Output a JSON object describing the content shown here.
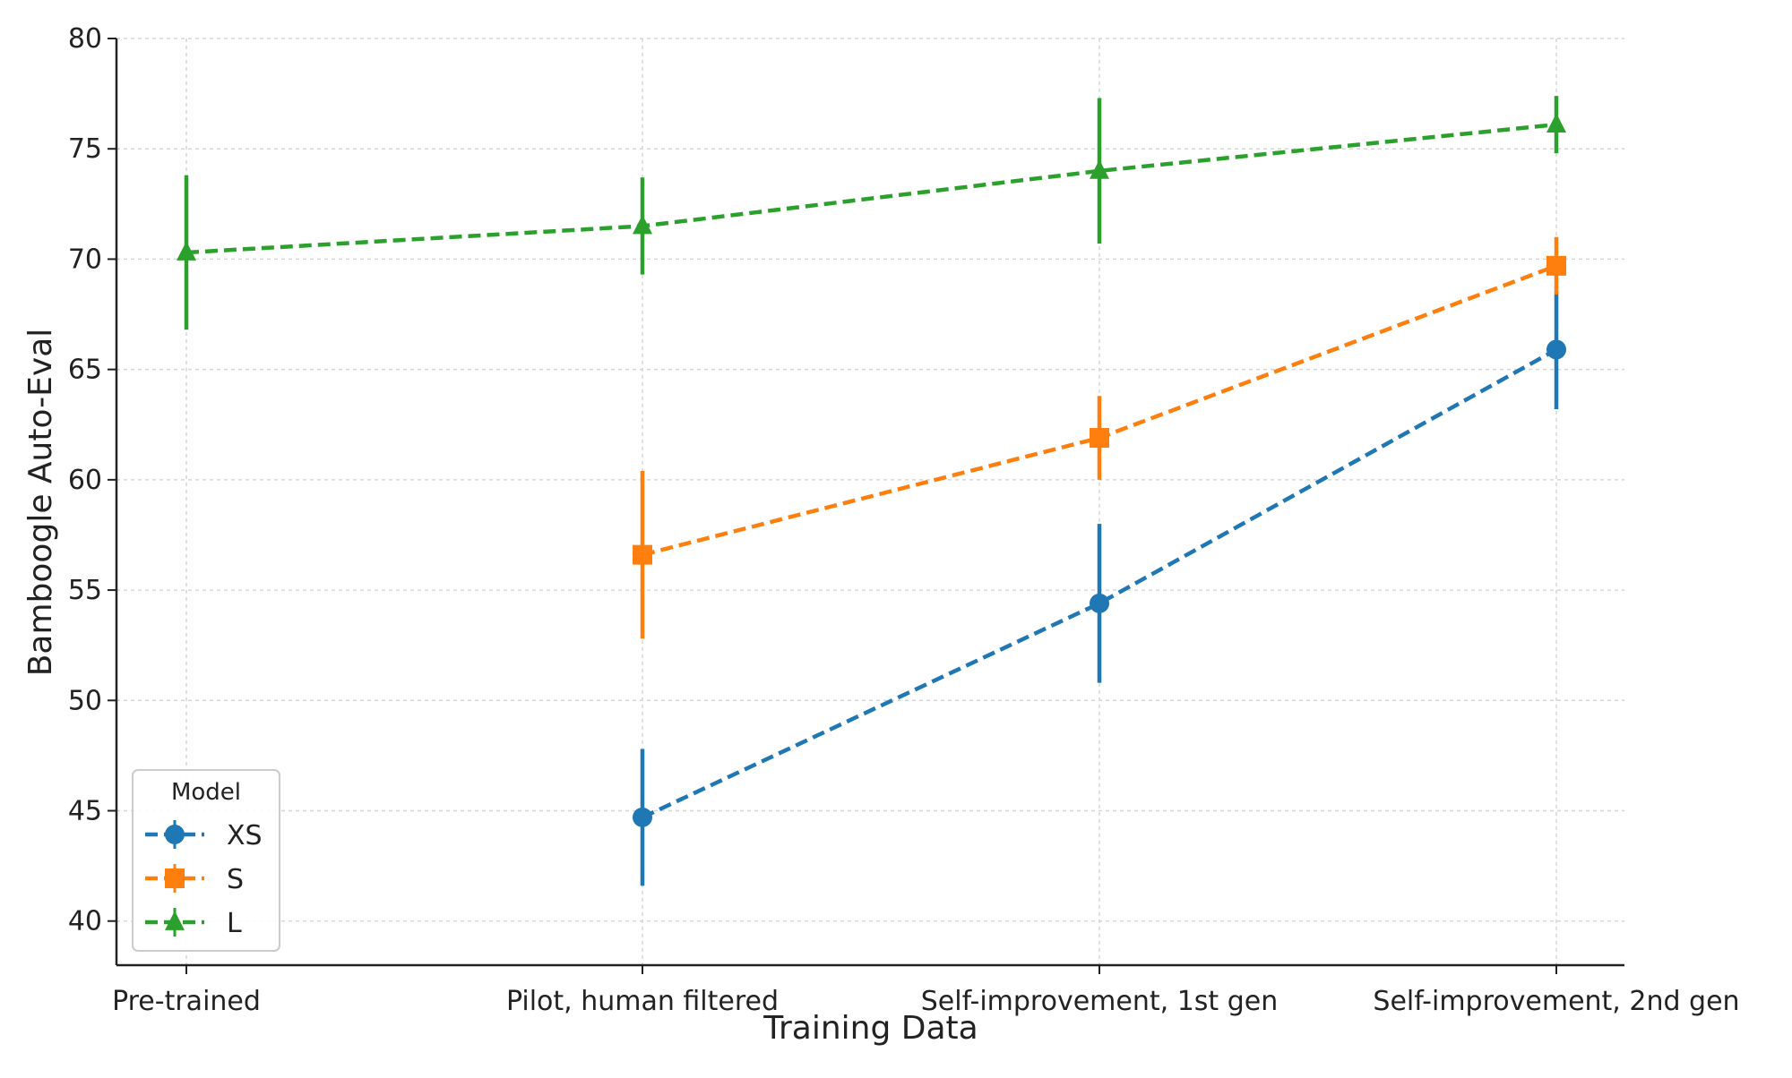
{
  "chart_data": {
    "type": "line",
    "title": "",
    "xlabel": "Training Data",
    "ylabel": "Bamboogle Auto-Eval",
    "categories": [
      "Pre-trained",
      "Pilot, human filtered",
      "Self-improvement, 1st gen",
      "Self-improvement, 2nd gen"
    ],
    "ylim": [
      38,
      80
    ],
    "yticks": [
      40,
      45,
      50,
      55,
      60,
      65,
      70,
      75,
      80
    ],
    "grid": true,
    "legend": {
      "title": "Model",
      "placement": "lower-left"
    },
    "series": [
      {
        "name": "XS",
        "color": "#1f77b4",
        "marker": "circle",
        "linestyle": "dashed",
        "values": [
          null,
          44.7,
          54.4,
          65.9
        ],
        "err_low": [
          null,
          41.6,
          50.8,
          63.2
        ],
        "err_high": [
          null,
          47.8,
          58.0,
          68.5
        ]
      },
      {
        "name": "S",
        "color": "#ff7f0e",
        "marker": "square",
        "linestyle": "dashed",
        "values": [
          null,
          56.6,
          61.9,
          69.7
        ],
        "err_low": [
          null,
          52.8,
          60.0,
          68.4
        ],
        "err_high": [
          null,
          60.4,
          63.8,
          71.0
        ]
      },
      {
        "name": "L",
        "color": "#2ca02c",
        "marker": "triangle",
        "linestyle": "dashed",
        "values": [
          70.3,
          71.5,
          74.0,
          76.1
        ],
        "err_low": [
          66.8,
          69.3,
          70.7,
          74.8
        ],
        "err_high": [
          73.8,
          73.7,
          77.3,
          77.4
        ]
      }
    ]
  }
}
